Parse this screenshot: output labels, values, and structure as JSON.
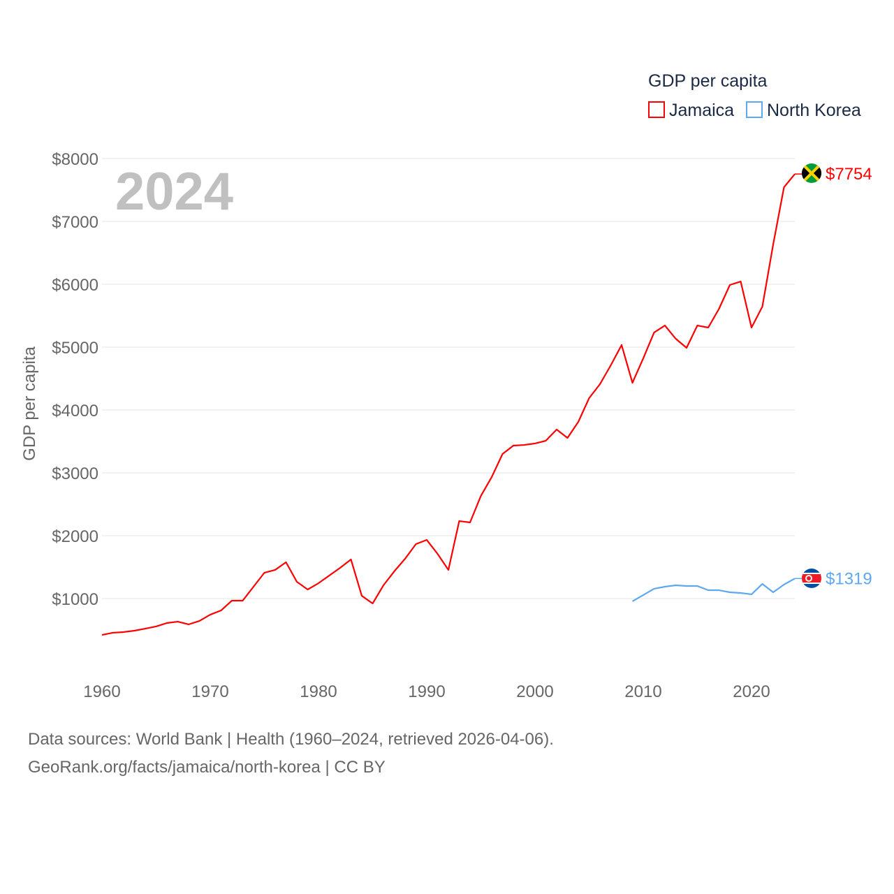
{
  "chart_data": {
    "type": "line",
    "title": "2024",
    "xlabel": "",
    "ylabel": "GDP per capita",
    "legend_title": "GDP per capita",
    "legend_position": "top-right",
    "xlim": [
      1960,
      2024
    ],
    "ylim": [
      0,
      8000
    ],
    "x_ticks": [
      "1960",
      "1970",
      "1980",
      "1990",
      "2000",
      "2010",
      "2020"
    ],
    "y_ticks": [
      "$1000",
      "$2000",
      "$3000",
      "$4000",
      "$5000",
      "$6000",
      "$7000",
      "$8000"
    ],
    "grid": true,
    "series": [
      {
        "name": "Jamaica",
        "color": "#ff0000",
        "end_label": "$7754",
        "start_year": 1960,
        "values": [
          422,
          456,
          467,
          489,
          522,
          556,
          611,
          633,
          589,
          644,
          744,
          811,
          967,
          967,
          1189,
          1411,
          1456,
          1578,
          1267,
          1144,
          1244,
          1367,
          1489,
          1622,
          1044,
          922,
          1211,
          1433,
          1633,
          1867,
          1933,
          1711,
          1456,
          2233,
          2211,
          2633,
          2933,
          3300,
          3433,
          3444,
          3467,
          3511,
          3689,
          3556,
          3811,
          4189,
          4411,
          4711,
          5033,
          4433,
          4822,
          5233,
          5344,
          5133,
          4989,
          5344,
          5311,
          5611,
          5989,
          6044,
          5311,
          5644,
          6633,
          7544,
          7754
        ]
      },
      {
        "name": "North Korea",
        "color": "#5ea8f0",
        "end_label": "$1319",
        "start_year": 2009,
        "values": [
          956,
          1056,
          1156,
          1189,
          1211,
          1200,
          1200,
          1133,
          1133,
          1100,
          1089,
          1067,
          1233,
          1100,
          1222,
          1319
        ]
      }
    ]
  },
  "footer": {
    "line1": "Data sources: World Bank | Health (1960–2024, retrieved 2026-04-06).",
    "line2": "GeoRank.org/facts/jamaica/north-korea | CC BY"
  }
}
